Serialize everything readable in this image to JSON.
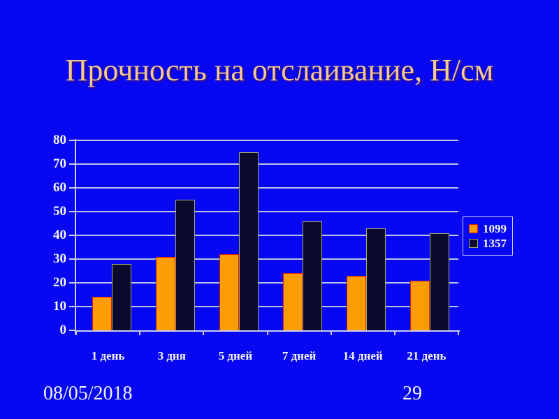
{
  "slide": {
    "title": "Прочность на отслаивание, Н/см",
    "footer": {
      "date": "08/05/2018",
      "page": "29"
    },
    "colors": {
      "background": "#0707F2",
      "title_text": "#F2CA8E",
      "body_text": "#F5F5F5"
    }
  },
  "chart_data": {
    "type": "bar",
    "title": "Прочность на отслаивание, Н/см",
    "categories": [
      "1 день",
      "3 дня",
      "5 дней",
      "7 дней",
      "14 дней",
      "21 день"
    ],
    "series": [
      {
        "name": "1099",
        "values": [
          14,
          31,
          32,
          24,
          23,
          21
        ],
        "color": "#FF9D06",
        "border_color": "#D32300"
      },
      {
        "name": "1357",
        "values": [
          28,
          55,
          75,
          46,
          43,
          41
        ],
        "color": "#0B0B2E",
        "border_color": "#A8A86A"
      }
    ],
    "xlabel": "",
    "ylabel": "",
    "ylim": [
      0,
      80
    ],
    "ytick_step": 10,
    "grid": true,
    "legend_position": "right",
    "colors": {
      "grid": "#BCC2E0",
      "axis": "#C9CEEA",
      "tick_label": "#F5F5F5"
    }
  }
}
